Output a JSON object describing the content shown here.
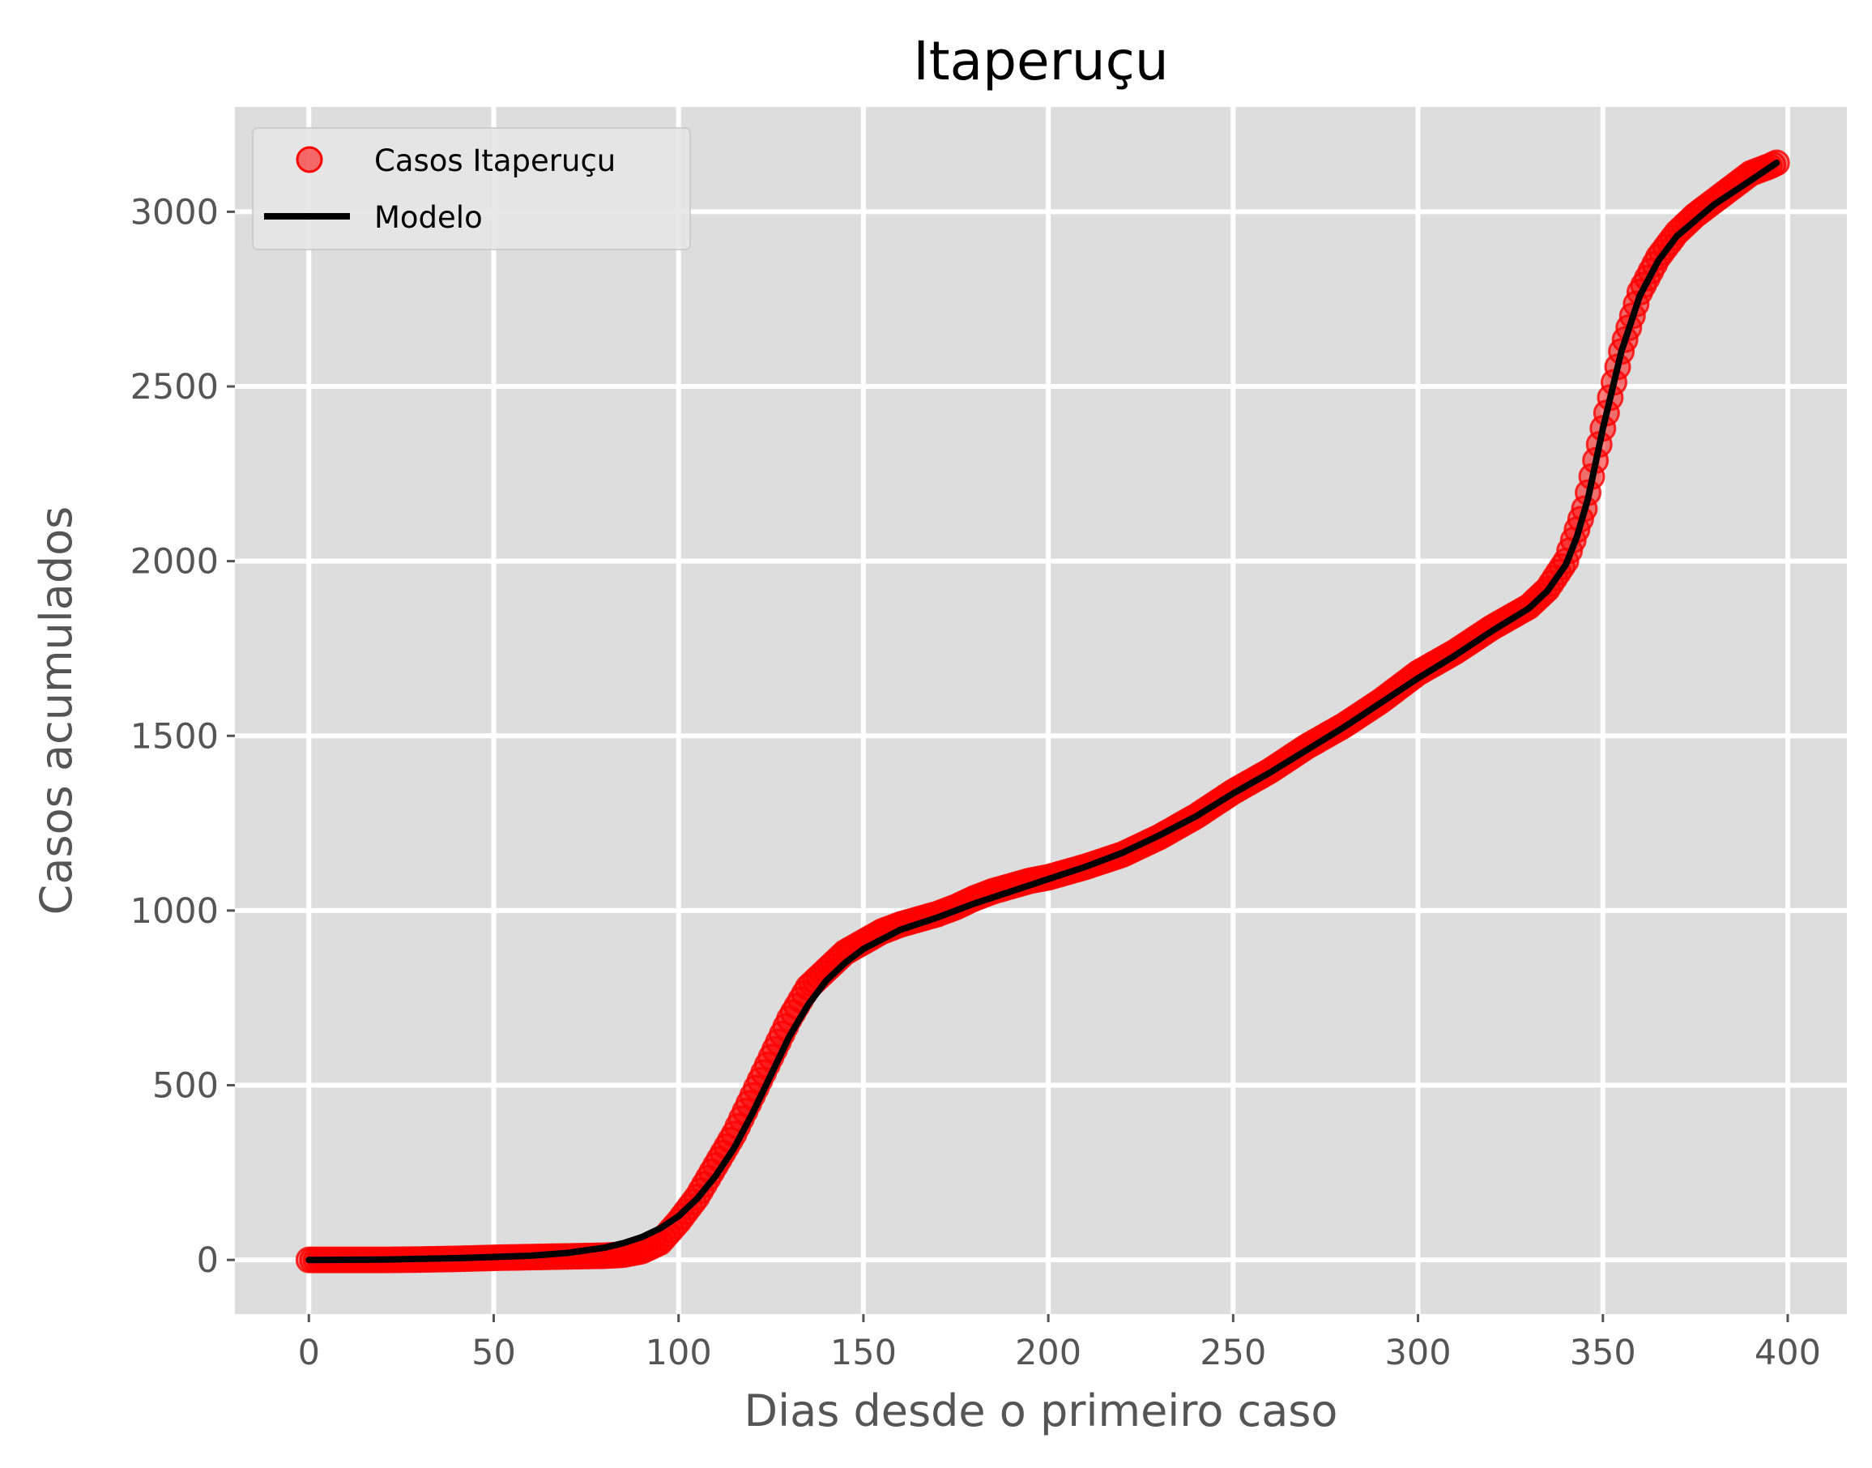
{
  "chart_data": {
    "type": "scatter",
    "title": "Itaperuçu",
    "xlabel": "Dias desde o primeiro caso",
    "ylabel": "Casos acumulados",
    "xlim": [
      -20,
      416
    ],
    "ylim": [
      -155,
      3300
    ],
    "xticks": [
      0,
      50,
      100,
      150,
      200,
      250,
      300,
      350,
      400
    ],
    "yticks": [
      0,
      500,
      1000,
      1500,
      2000,
      2500,
      3000
    ],
    "grid": true,
    "legend_position": "top-left",
    "series": [
      {
        "name": "Casos Itaperuçu",
        "kind": "markers",
        "color": "#ff0000",
        "x": [
          0,
          10,
          20,
          30,
          40,
          50,
          60,
          70,
          80,
          85,
          90,
          95,
          100,
          105,
          110,
          115,
          120,
          125,
          130,
          135,
          140,
          145,
          150,
          155,
          160,
          165,
          170,
          175,
          180,
          185,
          190,
          195,
          200,
          210,
          220,
          230,
          240,
          250,
          260,
          270,
          280,
          290,
          300,
          310,
          320,
          330,
          335,
          340,
          345,
          350,
          355,
          360,
          365,
          370,
          375,
          380,
          385,
          390,
          395,
          397
        ],
        "y": [
          0,
          0,
          0,
          1,
          3,
          6,
          8,
          10,
          12,
          15,
          25,
          50,
          110,
          180,
          270,
          360,
          470,
          580,
          690,
          780,
          830,
          880,
          910,
          940,
          960,
          975,
          990,
          1010,
          1035,
          1055,
          1070,
          1085,
          1095,
          1125,
          1160,
          1210,
          1270,
          1340,
          1400,
          1470,
          1530,
          1600,
          1680,
          1740,
          1810,
          1870,
          1920,
          2000,
          2150,
          2380,
          2600,
          2770,
          2870,
          2940,
          2990,
          3030,
          3070,
          3110,
          3130,
          3140
        ]
      },
      {
        "name": "Modelo",
        "kind": "line",
        "color": "#000000",
        "x": [
          0,
          20,
          40,
          60,
          70,
          80,
          85,
          90,
          95,
          100,
          105,
          110,
          115,
          120,
          125,
          130,
          135,
          140,
          145,
          150,
          160,
          170,
          180,
          190,
          200,
          210,
          220,
          230,
          240,
          250,
          260,
          270,
          280,
          290,
          300,
          310,
          320,
          330,
          335,
          340,
          343,
          346,
          350,
          355,
          360,
          365,
          370,
          380,
          390,
          397
        ],
        "y": [
          0,
          1,
          5,
          12,
          20,
          35,
          48,
          65,
          90,
          125,
          175,
          240,
          320,
          420,
          530,
          640,
          730,
          800,
          850,
          890,
          945,
          980,
          1020,
          1055,
          1090,
          1125,
          1165,
          1215,
          1270,
          1335,
          1395,
          1460,
          1525,
          1595,
          1665,
          1730,
          1800,
          1865,
          1915,
          1990,
          2070,
          2180,
          2380,
          2600,
          2760,
          2860,
          2930,
          3020,
          3090,
          3140
        ]
      }
    ]
  }
}
